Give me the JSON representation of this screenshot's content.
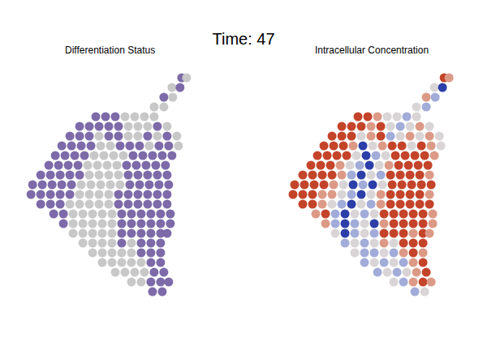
{
  "title": "Time: 47",
  "chart_data": [
    {
      "type": "scatter",
      "title": "Differentiation Status",
      "marker": "circle",
      "tick_labels": false,
      "grid": false,
      "xlim": [
        25,
        245
      ],
      "ylim": [
        380,
        80
      ],
      "x": [
        224,
        230,
        212,
        222,
        202,
        213,
        190,
        202,
        118,
        130,
        142,
        154,
        166,
        178,
        190,
        98,
        110,
        122,
        134,
        146,
        158,
        170,
        182,
        194,
        206,
        86,
        98,
        110,
        122,
        134,
        146,
        158,
        170,
        182,
        194,
        206,
        218,
        76,
        88,
        100,
        112,
        124,
        136,
        148,
        160,
        172,
        184,
        196,
        208,
        220,
        68,
        80,
        92,
        104,
        116,
        128,
        140,
        152,
        164,
        176,
        188,
        200,
        212,
        60,
        72,
        84,
        96,
        108,
        120,
        132,
        144,
        156,
        168,
        180,
        192,
        204,
        50,
        62,
        74,
        86,
        98,
        110,
        122,
        134,
        146,
        158,
        170,
        182,
        194,
        206,
        40,
        52,
        64,
        76,
        88,
        100,
        112,
        124,
        136,
        148,
        160,
        172,
        184,
        196,
        208,
        38,
        50,
        62,
        74,
        86,
        98,
        110,
        122,
        134,
        146,
        158,
        170,
        182,
        194,
        206,
        50,
        62,
        74,
        86,
        98,
        110,
        122,
        134,
        146,
        158,
        170,
        182,
        194,
        206,
        66,
        78,
        90,
        102,
        114,
        126,
        138,
        150,
        162,
        174,
        186,
        198,
        210,
        78,
        90,
        102,
        114,
        126,
        138,
        150,
        162,
        174,
        186,
        198,
        210,
        90,
        102,
        114,
        126,
        138,
        150,
        162,
        174,
        186,
        198,
        206,
        102,
        114,
        126,
        138,
        150,
        162,
        174,
        186,
        198,
        114,
        126,
        138,
        150,
        162,
        174,
        186,
        198,
        126,
        138,
        150,
        162,
        174,
        186,
        198,
        142,
        154,
        166,
        178,
        190,
        202,
        162,
        174,
        186,
        198,
        208,
        188,
        200
      ],
      "y": [
        96,
        96,
        108,
        108,
        120,
        120,
        132,
        132,
        144,
        144,
        144,
        144,
        144,
        144,
        144,
        156,
        156,
        156,
        156,
        156,
        156,
        156,
        156,
        156,
        156,
        168,
        168,
        168,
        168,
        168,
        168,
        168,
        168,
        168,
        168,
        168,
        168,
        180,
        180,
        180,
        180,
        180,
        180,
        180,
        180,
        180,
        180,
        180,
        180,
        180,
        192,
        192,
        192,
        192,
        192,
        192,
        192,
        192,
        192,
        192,
        192,
        192,
        192,
        204,
        204,
        204,
        204,
        204,
        204,
        204,
        204,
        204,
        204,
        204,
        204,
        204,
        216,
        216,
        216,
        216,
        216,
        216,
        216,
        216,
        216,
        216,
        216,
        216,
        216,
        216,
        228,
        228,
        228,
        228,
        228,
        228,
        228,
        228,
        228,
        228,
        228,
        228,
        228,
        228,
        228,
        240,
        240,
        240,
        240,
        240,
        240,
        240,
        240,
        240,
        240,
        240,
        240,
        240,
        240,
        240,
        252,
        252,
        252,
        252,
        252,
        252,
        252,
        252,
        252,
        252,
        252,
        252,
        252,
        252,
        264,
        264,
        264,
        264,
        264,
        264,
        264,
        264,
        264,
        264,
        264,
        264,
        264,
        276,
        276,
        276,
        276,
        276,
        276,
        276,
        276,
        276,
        276,
        276,
        276,
        288,
        288,
        288,
        288,
        288,
        288,
        288,
        288,
        288,
        288,
        288,
        300,
        300,
        300,
        300,
        300,
        300,
        300,
        300,
        300,
        312,
        312,
        312,
        312,
        312,
        312,
        312,
        312,
        324,
        324,
        324,
        324,
        324,
        324,
        324,
        336,
        336,
        336,
        336,
        336,
        336,
        348,
        348,
        348,
        348,
        348,
        360,
        360
      ],
      "colors": [
        "#7d6aa9",
        "#c8c8c8",
        "#c8c8c8",
        "#7d6aa9",
        "#7d6aa9",
        "#c8c8c8",
        "#c8c8c8",
        "#c8c8c8",
        "#7d6aa9",
        "#7d6aa9",
        "#7d6aa9",
        "#c8c8c8",
        "#c8c8c8",
        "#c8c8c8",
        "#c8c8c8",
        "#7d6aa9",
        "#7d6aa9",
        "#7d6aa9",
        "#7d6aa9",
        "#7d6aa9",
        "#c8c8c8",
        "#c8c8c8",
        "#c8c8c8",
        "#7d6aa9",
        "#c8c8c8",
        "#7d6aa9",
        "#7d6aa9",
        "#7d6aa9",
        "#c8c8c8",
        "#7d6aa9",
        "#7d6aa9",
        "#c8c8c8",
        "#c8c8c8",
        "#7d6aa9",
        "#c8c8c8",
        "#7d6aa9",
        "#c8c8c8",
        "#7d6aa9",
        "#7d6aa9",
        "#7d6aa9",
        "#7d6aa9",
        "#c8c8c8",
        "#c8c8c8",
        "#7d6aa9",
        "#7d6aa9",
        "#7d6aa9",
        "#c8c8c8",
        "#7d6aa9",
        "#7d6aa9",
        "#c8c8c8",
        "#7d6aa9",
        "#7d6aa9",
        "#7d6aa9",
        "#7d6aa9",
        "#c8c8c8",
        "#c8c8c8",
        "#c8c8c8",
        "#c8c8c8",
        "#7d6aa9",
        "#7d6aa9",
        "#7d6aa9",
        "#7d6aa9",
        "#7d6aa9",
        "#7d6aa9",
        "#7d6aa9",
        "#7d6aa9",
        "#7d6aa9",
        "#c8c8c8",
        "#c8c8c8",
        "#c8c8c8",
        "#c8c8c8",
        "#7d6aa9",
        "#7d6aa9",
        "#7d6aa9",
        "#7d6aa9",
        "#7d6aa9",
        "#7d6aa9",
        "#7d6aa9",
        "#7d6aa9",
        "#7d6aa9",
        "#7d6aa9",
        "#c8c8c8",
        "#c8c8c8",
        "#c8c8c8",
        "#c8c8c8",
        "#7d6aa9",
        "#7d6aa9",
        "#7d6aa9",
        "#7d6aa9",
        "#7d6aa9",
        "#7d6aa9",
        "#7d6aa9",
        "#7d6aa9",
        "#7d6aa9",
        "#7d6aa9",
        "#c8c8c8",
        "#c8c8c8",
        "#c8c8c8",
        "#c8c8c8",
        "#c8c8c8",
        "#7d6aa9",
        "#7d6aa9",
        "#7d6aa9",
        "#7d6aa9",
        "#7d6aa9",
        "#7d6aa9",
        "#7d6aa9",
        "#7d6aa9",
        "#7d6aa9",
        "#7d6aa9",
        "#c8c8c8",
        "#c8c8c8",
        "#c8c8c8",
        "#c8c8c8",
        "#7d6aa9",
        "#7d6aa9",
        "#7d6aa9",
        "#7d6aa9",
        "#7d6aa9",
        "#7d6aa9",
        "#7d6aa9",
        "#7d6aa9",
        "#7d6aa9",
        "#c8c8c8",
        "#c8c8c8",
        "#c8c8c8",
        "#c8c8c8",
        "#c8c8c8",
        "#7d6aa9",
        "#7d6aa9",
        "#7d6aa9",
        "#7d6aa9",
        "#7d6aa9",
        "#7d6aa9",
        "#7d6aa9",
        "#7d6aa9",
        "#c8c8c8",
        "#c8c8c8",
        "#c8c8c8",
        "#c8c8c8",
        "#c8c8c8",
        "#7d6aa9",
        "#7d6aa9",
        "#7d6aa9",
        "#7d6aa9",
        "#7d6aa9",
        "#7d6aa9",
        "#7d6aa9",
        "#c8c8c8",
        "#c8c8c8",
        "#c8c8c8",
        "#c8c8c8",
        "#c8c8c8",
        "#7d6aa9",
        "#7d6aa9",
        "#7d6aa9",
        "#7d6aa9",
        "#7d6aa9",
        "#7d6aa9",
        "#c8c8c8",
        "#c8c8c8",
        "#c8c8c8",
        "#c8c8c8",
        "#c8c8c8",
        "#7d6aa9",
        "#7d6aa9",
        "#7d6aa9",
        "#7d6aa9",
        "#7d6aa9",
        "#7d6aa9",
        "#c8c8c8",
        "#c8c8c8",
        "#c8c8c8",
        "#c8c8c8",
        "#7d6aa9",
        "#c8c8c8",
        "#7d6aa9",
        "#7d6aa9",
        "#7d6aa9",
        "#c8c8c8",
        "#c8c8c8",
        "#c8c8c8",
        "#c8c8c8",
        "#c8c8c8",
        "#7d6aa9",
        "#7d6aa9",
        "#7d6aa9",
        "#c8c8c8",
        "#c8c8c8",
        "#c8c8c8",
        "#c8c8c8",
        "#c8c8c8",
        "#7d6aa9",
        "#7d6aa9",
        "#c8c8c8",
        "#c8c8c8",
        "#c8c8c8",
        "#c8c8c8",
        "#7d6aa9",
        "#7d6aa9",
        "#c8c8c8",
        "#c8c8c8",
        "#7d6aa9",
        "#7d6aa9",
        "#7d6aa9",
        "#7d6aa9",
        "#7d6aa9"
      ]
    },
    {
      "type": "scatter",
      "title": "Intracellular Concentration",
      "marker": "circle",
      "tick_labels": false,
      "grid": false,
      "xlim": [
        25,
        245
      ],
      "ylim": [
        380,
        80
      ],
      "x": [
        224,
        230,
        212,
        222,
        202,
        213,
        190,
        202,
        118,
        130,
        142,
        154,
        166,
        178,
        190,
        98,
        110,
        122,
        134,
        146,
        158,
        170,
        182,
        194,
        206,
        86,
        98,
        110,
        122,
        134,
        146,
        158,
        170,
        182,
        194,
        206,
        218,
        76,
        88,
        100,
        112,
        124,
        136,
        148,
        160,
        172,
        184,
        196,
        208,
        220,
        68,
        80,
        92,
        104,
        116,
        128,
        140,
        152,
        164,
        176,
        188,
        200,
        212,
        60,
        72,
        84,
        96,
        108,
        120,
        132,
        144,
        156,
        168,
        180,
        192,
        204,
        50,
        62,
        74,
        86,
        98,
        110,
        122,
        134,
        146,
        158,
        170,
        182,
        194,
        206,
        40,
        52,
        64,
        76,
        88,
        100,
        112,
        124,
        136,
        148,
        160,
        172,
        184,
        196,
        208,
        38,
        50,
        62,
        74,
        86,
        98,
        110,
        122,
        134,
        146,
        158,
        170,
        182,
        194,
        206,
        50,
        62,
        74,
        86,
        98,
        110,
        122,
        134,
        146,
        158,
        170,
        182,
        194,
        206,
        66,
        78,
        90,
        102,
        114,
        126,
        138,
        150,
        162,
        174,
        186,
        198,
        210,
        78,
        90,
        102,
        114,
        126,
        138,
        150,
        162,
        174,
        186,
        198,
        210,
        90,
        102,
        114,
        126,
        138,
        150,
        162,
        174,
        186,
        198,
        206,
        102,
        114,
        126,
        138,
        150,
        162,
        174,
        186,
        198,
        114,
        126,
        138,
        150,
        162,
        174,
        186,
        198,
        126,
        138,
        150,
        162,
        174,
        186,
        198,
        142,
        154,
        166,
        178,
        190,
        202,
        162,
        174,
        186,
        198,
        208,
        188,
        200
      ],
      "y": [
        96,
        96,
        108,
        108,
        120,
        120,
        132,
        132,
        144,
        144,
        144,
        144,
        144,
        144,
        144,
        156,
        156,
        156,
        156,
        156,
        156,
        156,
        156,
        156,
        156,
        168,
        168,
        168,
        168,
        168,
        168,
        168,
        168,
        168,
        168,
        168,
        168,
        180,
        180,
        180,
        180,
        180,
        180,
        180,
        180,
        180,
        180,
        180,
        180,
        180,
        192,
        192,
        192,
        192,
        192,
        192,
        192,
        192,
        192,
        192,
        192,
        192,
        192,
        204,
        204,
        204,
        204,
        204,
        204,
        204,
        204,
        204,
        204,
        204,
        204,
        204,
        216,
        216,
        216,
        216,
        216,
        216,
        216,
        216,
        216,
        216,
        216,
        216,
        216,
        216,
        228,
        228,
        228,
        228,
        228,
        228,
        228,
        228,
        228,
        228,
        228,
        228,
        228,
        228,
        228,
        240,
        240,
        240,
        240,
        240,
        240,
        240,
        240,
        240,
        240,
        240,
        240,
        240,
        240,
        240,
        252,
        252,
        252,
        252,
        252,
        252,
        252,
        252,
        252,
        252,
        252,
        252,
        252,
        252,
        264,
        264,
        264,
        264,
        264,
        264,
        264,
        264,
        264,
        264,
        264,
        264,
        264,
        276,
        276,
        276,
        276,
        276,
        276,
        276,
        276,
        276,
        276,
        276,
        276,
        288,
        288,
        288,
        288,
        288,
        288,
        288,
        288,
        288,
        288,
        288,
        300,
        300,
        300,
        300,
        300,
        300,
        300,
        300,
        300,
        312,
        312,
        312,
        312,
        312,
        312,
        312,
        312,
        324,
        324,
        324,
        324,
        324,
        324,
        324,
        336,
        336,
        336,
        336,
        336,
        336,
        348,
        348,
        348,
        348,
        348,
        360,
        360
      ],
      "colors": [
        "#c4442a",
        "#dc9a86",
        "#d9d4d6",
        "#2c3ea8",
        "#dc9a86",
        "#a2acd9",
        "#d9d4d6",
        "#a2acd9",
        "#c4442a",
        "#c4442a",
        "#dc9a86",
        "#d9d4d6",
        "#d9d4d6",
        "#a2acd9",
        "#d9d4d6",
        "#c4442a",
        "#c4442a",
        "#c4442a",
        "#dc9a86",
        "#c4442a",
        "#d9d4d6",
        "#a2acd9",
        "#d9d4d6",
        "#dc9a86",
        "#d9d4d6",
        "#c4442a",
        "#c4442a",
        "#c4442a",
        "#d9d4d6",
        "#dc9a86",
        "#c4442a",
        "#a2acd9",
        "#d9d4d6",
        "#dc9a86",
        "#d9d4d6",
        "#dc9a86",
        "#d9d4d6",
        "#c4442a",
        "#c4442a",
        "#c4442a",
        "#dc9a86",
        "#2c3ea8",
        "#d9d4d6",
        "#dc9a86",
        "#c4442a",
        "#c4442a",
        "#d9d4d6",
        "#c4442a",
        "#dc9a86",
        "#d9d4d6",
        "#c4442a",
        "#c4442a",
        "#c4442a",
        "#c4442a",
        "#d9d4d6",
        "#2c3ea8",
        "#a2acd9",
        "#d9d4d6",
        "#c4442a",
        "#c4442a",
        "#c4442a",
        "#c4442a",
        "#dc9a86",
        "#c4442a",
        "#c4442a",
        "#c4442a",
        "#dc9a86",
        "#d9d4d6",
        "#a2acd9",
        "#2c3ea8",
        "#d9d4d6",
        "#dc9a86",
        "#c4442a",
        "#c4442a",
        "#c4442a",
        "#c4442a",
        "#c4442a",
        "#c4442a",
        "#c4442a",
        "#c4442a",
        "#dc9a86",
        "#a2acd9",
        "#2c3ea8",
        "#d9d4d6",
        "#a2acd9",
        "#c4442a",
        "#c4442a",
        "#c4442a",
        "#c4442a",
        "#dc9a86",
        "#c4442a",
        "#c4442a",
        "#c4442a",
        "#c4442a",
        "#dc9a86",
        "#d9d4d6",
        "#2c3ea8",
        "#a2acd9",
        "#2c3ea8",
        "#d9d4d6",
        "#c4442a",
        "#c4442a",
        "#c4442a",
        "#c4442a",
        "#c4442a",
        "#c4442a",
        "#c4442a",
        "#c4442a",
        "#dc9a86",
        "#dc9a86",
        "#d9d4d6",
        "#a2acd9",
        "#2c3ea8",
        "#d9d4d6",
        "#dc9a86",
        "#c4442a",
        "#c4442a",
        "#c4442a",
        "#c4442a",
        "#dc9a86",
        "#c4442a",
        "#c4442a",
        "#dc9a86",
        "#d9d4d6",
        "#a2acd9",
        "#2c3ea8",
        "#d9d4d6",
        "#a2acd9",
        "#dc9a86",
        "#c4442a",
        "#c4442a",
        "#c4442a",
        "#c4442a",
        "#c4442a",
        "#dc9a86",
        "#c4442a",
        "#a2acd9",
        "#2c3ea8",
        "#d9d4d6",
        "#a2acd9",
        "#d9d4d6",
        "#c4442a",
        "#c4442a",
        "#c4442a",
        "#c4442a",
        "#c4442a",
        "#dc9a86",
        "#dc9a86",
        "#a2acd9",
        "#2c3ea8",
        "#a2acd9",
        "#d9d4d6",
        "#2c3ea8",
        "#dc9a86",
        "#c4442a",
        "#c4442a",
        "#c4442a",
        "#c4442a",
        "#dc9a86",
        "#d9d4d6",
        "#2c3ea8",
        "#a2acd9",
        "#d9d4d6",
        "#a2acd9",
        "#c4442a",
        "#c4442a",
        "#c4442a",
        "#dc9a86",
        "#c4442a",
        "#dc9a86",
        "#a2acd9",
        "#d9d4d6",
        "#a2acd9",
        "#d9d4d6",
        "#dc9a86",
        "#d9d4d6",
        "#c4442a",
        "#c4442a",
        "#c4442a",
        "#d9d4d6",
        "#a2acd9",
        "#a2acd9",
        "#d9d4d6",
        "#a2acd9",
        "#dc9a86",
        "#c4442a",
        "#dc9a86",
        "#a2acd9",
        "#d9d4d6",
        "#a2acd9",
        "#d9d4d6",
        "#a2acd9",
        "#dc9a86",
        "#c4442a",
        "#a2acd9",
        "#d9d4d6",
        "#a2acd9",
        "#d9d4d6",
        "#dc9a86",
        "#c4442a",
        "#d9d4d6",
        "#a2acd9",
        "#dc9a86",
        "#c4442a",
        "#dc9a86",
        "#a2acd9",
        "#d9d4d6"
      ]
    }
  ]
}
